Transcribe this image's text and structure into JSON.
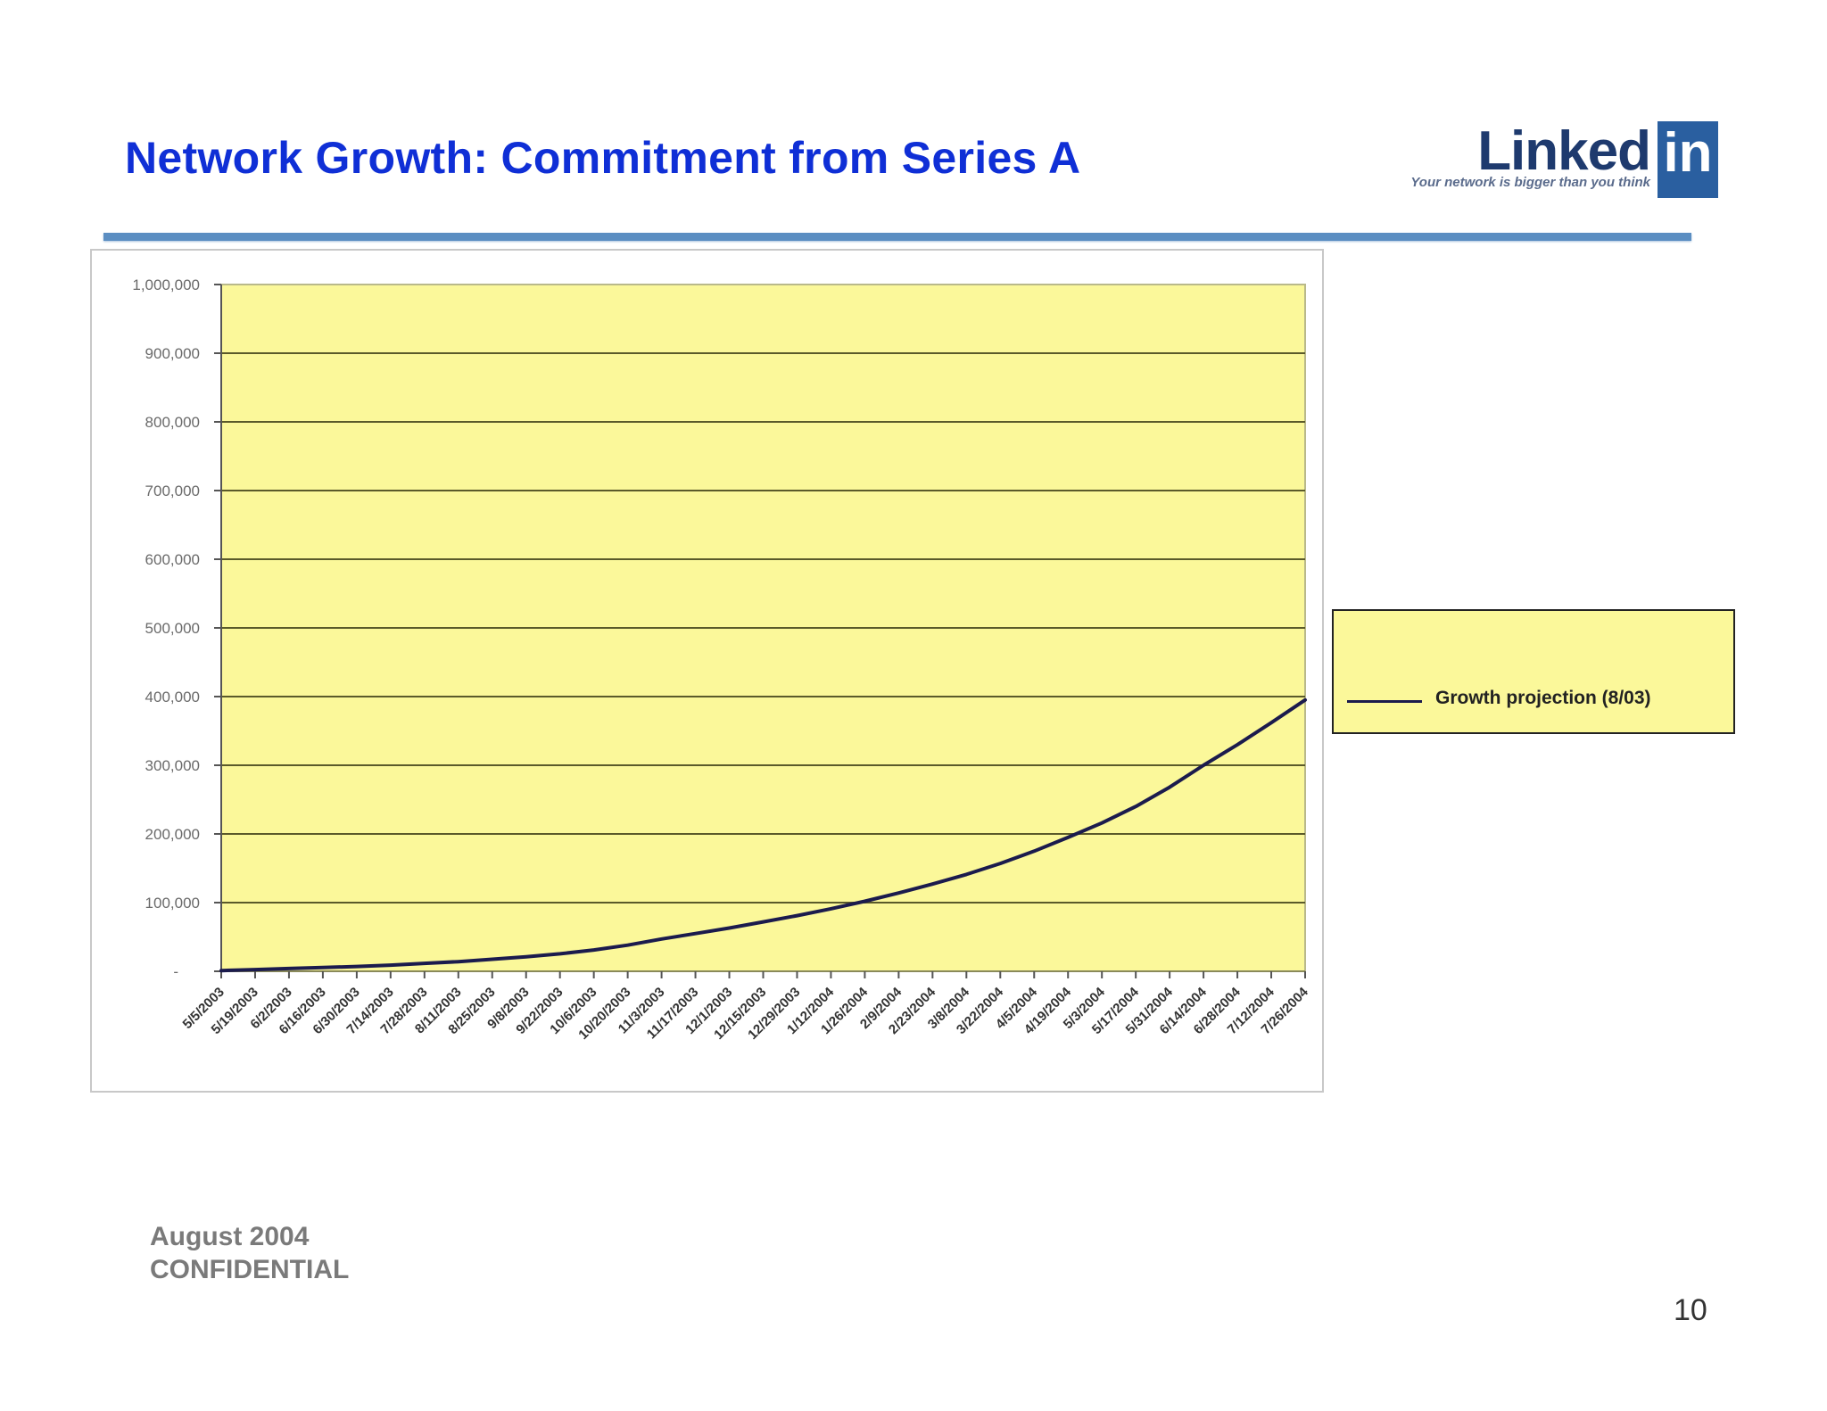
{
  "slide": {
    "title": "Network Growth: Commitment from Series A",
    "page_number": "10",
    "footer": {
      "line1": "August 2004",
      "line2": "CONFIDENTIAL"
    },
    "logo": {
      "word": "Linked",
      "box": "in",
      "tagline": "Your network is bigger than you think",
      "colors": {
        "word": "#1e3a6e",
        "box": "#2a5fa0"
      }
    },
    "colors": {
      "title": "#0f2fd6",
      "rule": "#5b8ec2",
      "plot_bg": "#fbf89a",
      "line": "#1b1b4d",
      "gridline": "#5a5a2a"
    }
  },
  "chart_data": {
    "type": "line",
    "title": "",
    "xlabel": "",
    "ylabel": "",
    "ylim": [
      0,
      1000000
    ],
    "yticks": [
      0,
      100000,
      200000,
      300000,
      400000,
      500000,
      600000,
      700000,
      800000,
      900000,
      1000000
    ],
    "ytick_labels": [
      "-",
      "100,000",
      "200,000",
      "300,000",
      "400,000",
      "500,000",
      "600,000",
      "700,000",
      "800,000",
      "900,000",
      "1,000,000"
    ],
    "grid": true,
    "legend_position": "right",
    "categories": [
      "5/5/2003",
      "5/19/2003",
      "6/2/2003",
      "6/16/2003",
      "6/30/2003",
      "7/14/2003",
      "7/28/2003",
      "8/11/2003",
      "8/25/2003",
      "9/8/2003",
      "9/22/2003",
      "10/6/2003",
      "10/20/2003",
      "11/3/2003",
      "11/17/2003",
      "12/1/2003",
      "12/15/2003",
      "12/29/2003",
      "1/12/2004",
      "1/26/2004",
      "2/9/2004",
      "2/23/2004",
      "3/8/2004",
      "3/22/2004",
      "4/5/2004",
      "4/19/2004",
      "5/3/2004",
      "5/17/2004",
      "5/31/2004",
      "6/14/2004",
      "6/28/2004",
      "7/12/2004",
      "7/26/2004"
    ],
    "series": [
      {
        "name": "Growth projection (8/03)",
        "color": "#1b1b4d",
        "values": [
          1000,
          2500,
          4000,
          5500,
          7000,
          9000,
          11500,
          14000,
          17500,
          21000,
          25500,
          31000,
          38000,
          47000,
          55000,
          63000,
          72000,
          81000,
          91000,
          102000,
          114000,
          127000,
          141000,
          157000,
          175000,
          195000,
          216000,
          240000,
          268000,
          300000,
          330000,
          362000,
          395000
        ]
      }
    ]
  }
}
